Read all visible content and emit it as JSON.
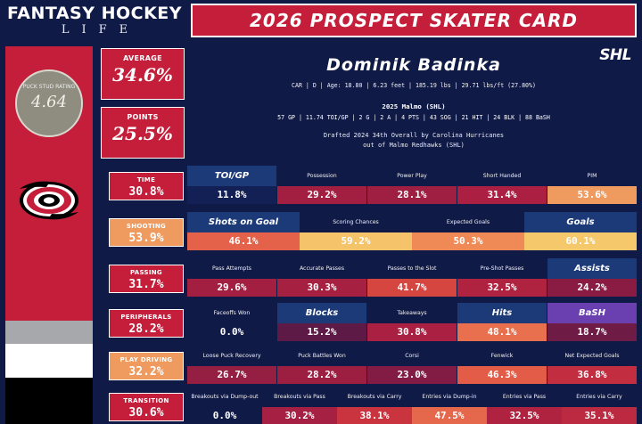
{
  "header": {
    "logo_top": "FANTASY HOCKEY",
    "logo_bottom": "LIFE",
    "title": "2026 PROSPECT SKATER CARD"
  },
  "sidebar": {
    "rating_label": "PUCK STUD RATING",
    "rating_value": "4.64",
    "team_logo_icon": "carolina-hurricanes-logo",
    "stripe_colors": [
      "#c41e3a",
      "#a6a8ab",
      "#ffffff",
      "#000000"
    ]
  },
  "summary": {
    "average_label": "AVERAGE",
    "average_value": "34.6%",
    "points_label": "POINTS",
    "points_value": "25.5%"
  },
  "player": {
    "name": "Dominik Badinka",
    "bio": "CAR | D | Age: 18.80 | 6.23 feet | 185.19 lbs | 29.71 lbs/ft  (27.80%)",
    "season_title": "2025 Malmo (SHL)",
    "season_stats": "57 GP | 11.74 TOI/GP | 2 G | 2 A | 4 PTS | 43 SOG | 21 HIT | 24 BLK | 88 BaSH",
    "draft_line1": "Drafted 2024 34th Overall by Carolina Hurricanes",
    "draft_line2": "out of Malmo Redhawks (SHL)",
    "league_logo": "SHL"
  },
  "categories": [
    {
      "label": "TIME",
      "value": "30.8%",
      "color": "#c41e3a",
      "cells": [
        {
          "label": "TOI/GP",
          "value": "11.8%",
          "hl": true,
          "lbg": "#1d3a78",
          "vbg": "#132055"
        },
        {
          "label": "Possession",
          "value": "29.2%",
          "hl": false,
          "lbg": "",
          "vbg": "#a31f42"
        },
        {
          "label": "Power Play",
          "value": "28.1%",
          "hl": false,
          "lbg": "",
          "vbg": "#9e1f42"
        },
        {
          "label": "Short Handed",
          "value": "31.4%",
          "hl": false,
          "lbg": "",
          "vbg": "#ab2042"
        },
        {
          "label": "PIM",
          "value": "53.6%",
          "hl": false,
          "lbg": "",
          "vbg": "#ef9a5f"
        }
      ]
    },
    {
      "label": "SHOOTING",
      "value": "53.9%",
      "color": "#ef9a5f",
      "cells": [
        {
          "label": "Shots on Goal",
          "value": "46.1%",
          "hl": true,
          "lbg": "#1d3a78",
          "vbg": "#e4624a"
        },
        {
          "label": "Scoring Chances",
          "value": "59.2%",
          "hl": false,
          "lbg": "",
          "vbg": "#f5c36a"
        },
        {
          "label": "Expected Goals",
          "value": "50.3%",
          "hl": false,
          "lbg": "",
          "vbg": "#ef8a57"
        },
        {
          "label": "Goals",
          "value": "60.1%",
          "hl": true,
          "lbg": "#1d3a78",
          "vbg": "#f5c86c"
        }
      ]
    },
    {
      "label": "PASSING",
      "value": "31.7%",
      "color": "#c41e3a",
      "cells": [
        {
          "label": "Pass Attempts",
          "value": "29.6%",
          "hl": false,
          "lbg": "",
          "vbg": "#a31f42"
        },
        {
          "label": "Accurate Passes",
          "value": "30.3%",
          "hl": false,
          "lbg": "",
          "vbg": "#a62042"
        },
        {
          "label": "Passes to the Slot",
          "value": "41.7%",
          "hl": false,
          "lbg": "",
          "vbg": "#d64640"
        },
        {
          "label": "Pre-Shot Passes",
          "value": "32.5%",
          "hl": false,
          "lbg": "",
          "vbg": "#b02340"
        },
        {
          "label": "Assists",
          "value": "24.2%",
          "hl": true,
          "lbg": "#1d3a78",
          "vbg": "#8a1c44"
        }
      ]
    },
    {
      "label": "PERIPHERALS",
      "value": "28.2%",
      "color": "#c41e3a",
      "cells": [
        {
          "label": "Faceoffs Won",
          "value": "0.0%",
          "hl": false,
          "lbg": "",
          "vbg": ""
        },
        {
          "label": "Blocks",
          "value": "15.2%",
          "hl": true,
          "lbg": "#1d3a78",
          "vbg": "#5e1a46"
        },
        {
          "label": "Takeaways",
          "value": "30.8%",
          "hl": false,
          "lbg": "",
          "vbg": "#a92042"
        },
        {
          "label": "Hits",
          "value": "48.1%",
          "hl": true,
          "lbg": "#1d3a78",
          "vbg": "#e8704e"
        },
        {
          "label": "BaSH",
          "value": "18.7%",
          "hl": true,
          "lbg": "#6a3fb0",
          "vbg": "#6e1b46"
        }
      ]
    },
    {
      "label": "PLAY DRIVING",
      "value": "32.2%",
      "color": "#ef9a5f",
      "cells": [
        {
          "label": "Loose Puck Recovery",
          "value": "26.7%",
          "hl": false,
          "lbg": "",
          "vbg": "#951e43"
        },
        {
          "label": "Puck Battles Won",
          "value": "28.2%",
          "hl": false,
          "lbg": "",
          "vbg": "#9c1f42"
        },
        {
          "label": "Corsi",
          "value": "23.0%",
          "hl": false,
          "lbg": "",
          "vbg": "#831c45"
        },
        {
          "label": "Fenwick",
          "value": "46.3%",
          "hl": false,
          "lbg": "",
          "vbg": "#e25c48"
        },
        {
          "label": "Net Expected Goals",
          "value": "36.8%",
          "hl": false,
          "lbg": "",
          "vbg": "#c22d40"
        }
      ]
    },
    {
      "label": "TRANSITION",
      "value": "30.6%",
      "color": "#c41e3a",
      "cells": [
        {
          "label": "Breakouts via Dump-out",
          "value": "0.0%",
          "hl": false,
          "lbg": "",
          "vbg": ""
        },
        {
          "label": "Breakouts via Pass",
          "value": "30.2%",
          "hl": false,
          "lbg": "",
          "vbg": "#a52042"
        },
        {
          "label": "Breakouts via Carry",
          "value": "38.1%",
          "hl": false,
          "lbg": "",
          "vbg": "#c9343f"
        },
        {
          "label": "Entries via Dump-in",
          "value": "47.5%",
          "hl": false,
          "lbg": "",
          "vbg": "#e6684c"
        },
        {
          "label": "Entries via Pass",
          "value": "32.5%",
          "hl": false,
          "lbg": "",
          "vbg": "#b02340"
        },
        {
          "label": "Entries via Carry",
          "value": "35.1%",
          "hl": false,
          "lbg": "",
          "vbg": "#bb2a40"
        }
      ]
    }
  ]
}
